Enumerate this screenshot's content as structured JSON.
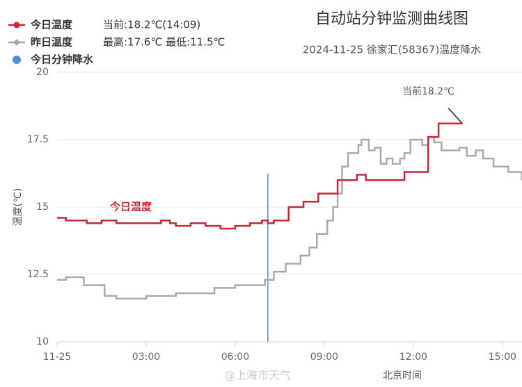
{
  "chart_data": {
    "type": "line",
    "title": "自动站分钟监测曲线图",
    "subtitle": "2024-11-25 徐家汇(58367)温度降水",
    "legend": [
      {
        "name": "今日温度",
        "info": "当前:18.2℃(14:09)"
      },
      {
        "name": "昨日温度",
        "info": "最高:17.6℃ 最低:11.5℃"
      },
      {
        "name": "今日分钟降水"
      }
    ],
    "y_label": "温度(℃)",
    "x_label": "北京时间",
    "annotations": [
      "今日温度",
      "当前18.2℃"
    ],
    "watermark": "@上海市天气",
    "cursor_x": 7.1,
    "xlim": [
      0,
      15.66
    ],
    "xticks": [
      {
        "value": 0,
        "label": "11-25"
      },
      {
        "value": 3,
        "label": "03:00"
      },
      {
        "value": 6,
        "label": "06:00"
      },
      {
        "value": 9,
        "label": "09:00"
      },
      {
        "value": 12,
        "label": "12:00"
      },
      {
        "value": 15,
        "label": "15:00"
      }
    ],
    "ylim": [
      10,
      20
    ],
    "yticks": [
      10,
      12.5,
      15,
      17.5,
      20
    ],
    "grid": true,
    "series": [
      {
        "name": "今日温度",
        "color": "#c8263a",
        "x": [
          0,
          0.3,
          1,
          1.5,
          2,
          3,
          3.5,
          3.8,
          4,
          4.5,
          5,
          5.5,
          6,
          6.5,
          6.9,
          7.1,
          7.3,
          7.8,
          8.3,
          8.8,
          9.45,
          10.1,
          10.4,
          11.4,
          11.7,
          12.5,
          12.85,
          13.65
        ],
        "values": [
          14.6,
          14.5,
          14.4,
          14.5,
          14.4,
          14.4,
          14.5,
          14.4,
          14.3,
          14.4,
          14.3,
          14.2,
          14.3,
          14.4,
          14.5,
          14.4,
          14.5,
          15.0,
          15.2,
          15.5,
          16.0,
          16.2,
          16.0,
          16.0,
          16.3,
          17.6,
          18.1,
          18.1
        ]
      },
      {
        "name": "昨日温度",
        "color": "#aaaaaa",
        "x": [
          0,
          0.3,
          0.55,
          0.9,
          1.6,
          2,
          2.8,
          3,
          4,
          5,
          5.3,
          6,
          6.5,
          7,
          7.3,
          7.7,
          8.2,
          8.5,
          8.75,
          9.1,
          9.3,
          9.45,
          9.6,
          9.8,
          10.15,
          10.25,
          10.5,
          10.7,
          10.9,
          11.1,
          11.3,
          11.55,
          11.7,
          11.9,
          12.15,
          12.3,
          12.5,
          12.7,
          12.95,
          13.55,
          13.8,
          14.1,
          14.35,
          14.7,
          15.2,
          15.65
        ],
        "values": [
          12.3,
          12.4,
          12.4,
          12.1,
          11.7,
          11.6,
          11.6,
          11.7,
          11.8,
          11.8,
          12.0,
          12.1,
          12.1,
          12.3,
          12.6,
          12.9,
          13.2,
          13.5,
          14.0,
          14.5,
          15.0,
          15.5,
          16.5,
          17.0,
          17.3,
          17.5,
          17.1,
          17.2,
          16.6,
          16.8,
          16.6,
          16.8,
          17.0,
          17.5,
          17.5,
          17.3,
          17.6,
          17.4,
          17.1,
          17.2,
          16.9,
          17.1,
          16.8,
          16.5,
          16.3,
          16.0
        ]
      }
    ]
  }
}
